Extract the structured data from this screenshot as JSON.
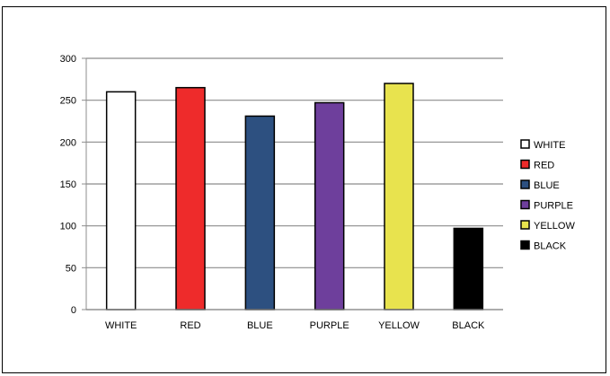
{
  "chart_data": {
    "type": "bar",
    "categories": [
      "WHITE",
      "RED",
      "BLUE",
      "PURPLE",
      "YELLOW",
      "BLACK"
    ],
    "values": [
      260,
      265,
      231,
      247,
      270,
      97
    ],
    "colors": [
      "#ffffff",
      "#ee2b2b",
      "#2d5080",
      "#6e3f9c",
      "#e8e34e",
      "#000000"
    ],
    "title": "",
    "xlabel": "",
    "ylabel": "",
    "ylim": [
      0,
      300
    ],
    "yticks": [
      0,
      50,
      100,
      150,
      200,
      250,
      300
    ],
    "grid": true,
    "legend_position": "right",
    "legend": [
      "WHITE",
      "RED",
      "BLUE",
      "PURPLE",
      "YELLOW",
      "BLACK"
    ]
  }
}
